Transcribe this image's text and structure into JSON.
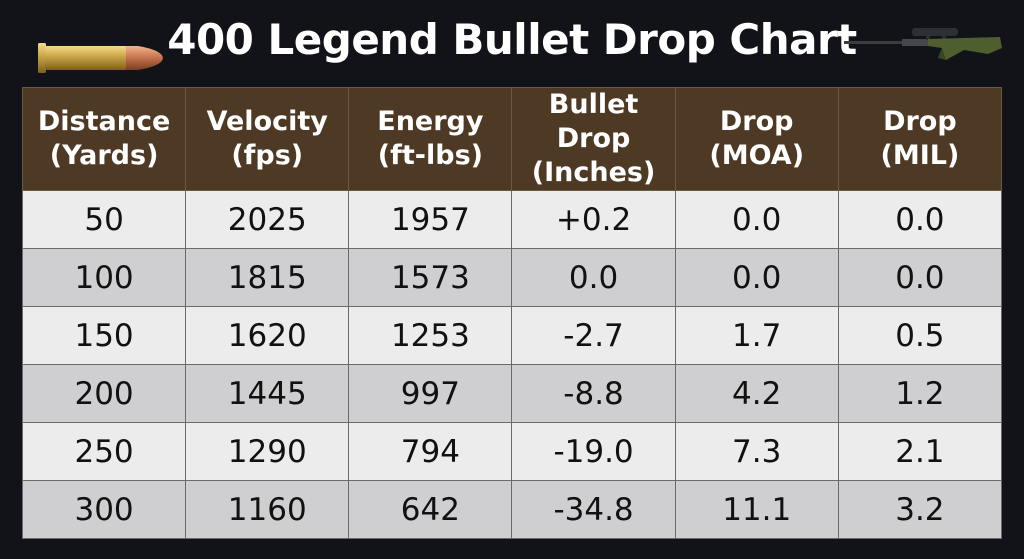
{
  "header": {
    "title": "400 Legend Bullet Drop Chart",
    "bullet_icon": "bullet-cartridge-icon",
    "rifle_icon": "scoped-rifle-icon"
  },
  "colors": {
    "background": "#111319",
    "header_row": "#4e3a24",
    "row_light": "#ececec",
    "row_dark": "#cfcfd1"
  },
  "chart_data": {
    "type": "table",
    "title": "400 Legend Bullet Drop Chart",
    "columns": [
      [
        "Distance",
        "(Yards)"
      ],
      [
        "Velocity",
        "(fps)"
      ],
      [
        "Energy",
        "(ft-lbs)"
      ],
      [
        "Bullet Drop",
        "(Inches)"
      ],
      [
        "Drop",
        "(MOA)"
      ],
      [
        "Drop",
        "(MIL)"
      ]
    ],
    "rows": [
      [
        "50",
        "2025",
        "1957",
        "+0.2",
        "0.0",
        "0.0"
      ],
      [
        "100",
        "1815",
        "1573",
        "0.0",
        "0.0",
        "0.0"
      ],
      [
        "150",
        "1620",
        "1253",
        "-2.7",
        "1.7",
        "0.5"
      ],
      [
        "200",
        "1445",
        "997",
        "-8.8",
        "4.2",
        "1.2"
      ],
      [
        "250",
        "1290",
        "794",
        "-19.0",
        "7.3",
        "2.1"
      ],
      [
        "300",
        "1160",
        "642",
        "-34.8",
        "11.1",
        "3.2"
      ]
    ]
  }
}
